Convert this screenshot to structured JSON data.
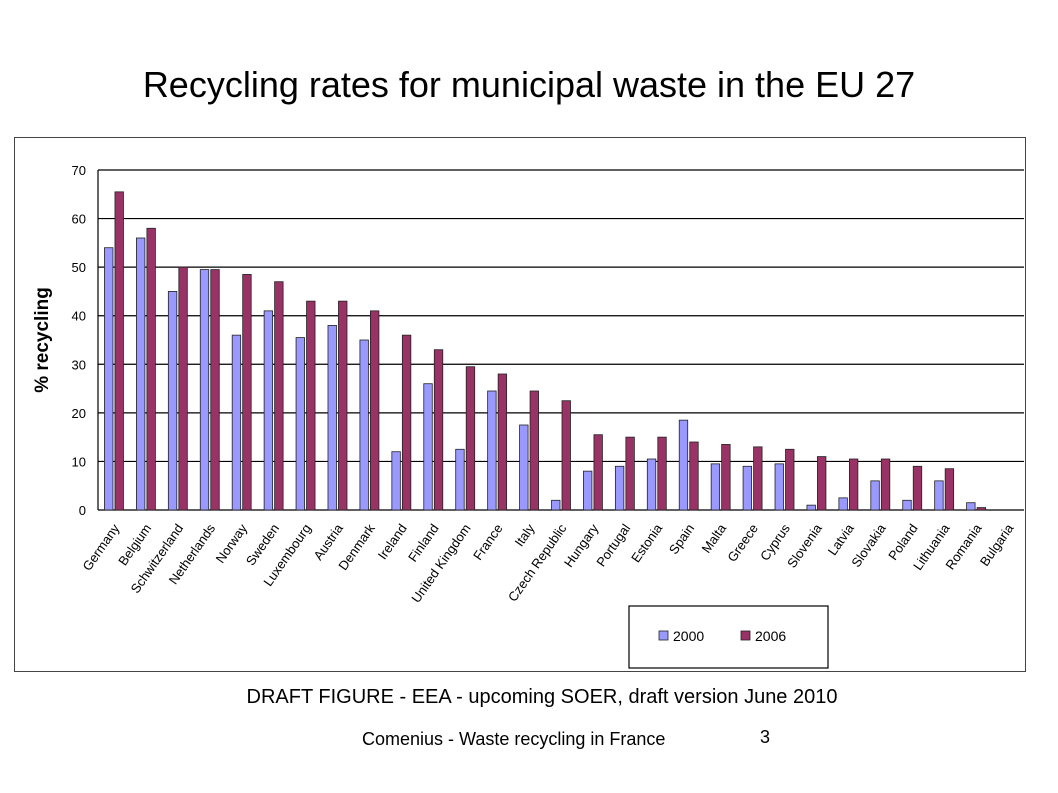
{
  "slide": {
    "title": "Recycling rates for municipal waste in the EU 27",
    "caption": "DRAFT FIGURE - EEA - upcoming SOER, draft version June 2010",
    "footer": "Comenius - Waste recycling in France",
    "page_number": "3"
  },
  "chart_data": {
    "type": "bar",
    "title": "",
    "xlabel": "",
    "ylabel": "% recycling",
    "ylim": [
      0,
      70
    ],
    "yticks": [
      0,
      10,
      20,
      30,
      40,
      50,
      60,
      70
    ],
    "grid": "horizontal",
    "legend_position": "bottom-right",
    "categories": [
      "Germany",
      "Belgium",
      "Schwitzerland",
      "Netherlands",
      "Norway",
      "Sweden",
      "Luxembourg",
      "Austria",
      "Denmark",
      "Ireland",
      "Finland",
      "United Kingdom",
      "France",
      "Italy",
      "Czech Republic",
      "Hungary",
      "Portugal",
      "Estonia",
      "Spain",
      "Malta",
      "Greece",
      "Cyprus",
      "Slovenia",
      "Latvia",
      "Slovakia",
      "Poland",
      "Lithuania",
      "Romania",
      "Bulgaria"
    ],
    "series": [
      {
        "name": "2000",
        "color": "#9999ff",
        "values": [
          54,
          56,
          45,
          49.5,
          36,
          41,
          35.5,
          38,
          35,
          12,
          26,
          12.5,
          24.5,
          17.5,
          2,
          8,
          9,
          10.5,
          18.5,
          9.5,
          9,
          9.5,
          1,
          2.5,
          6,
          2,
          6,
          1.5,
          0
        ]
      },
      {
        "name": "2006",
        "color": "#993366",
        "values": [
          65.5,
          58,
          50,
          49.5,
          48.5,
          47,
          43,
          43,
          41,
          36,
          33,
          29.5,
          28,
          24.5,
          22.5,
          15.5,
          15,
          15,
          14,
          13.5,
          13,
          12.5,
          11,
          10.5,
          10.5,
          9,
          8.5,
          0.5,
          0
        ]
      }
    ]
  }
}
